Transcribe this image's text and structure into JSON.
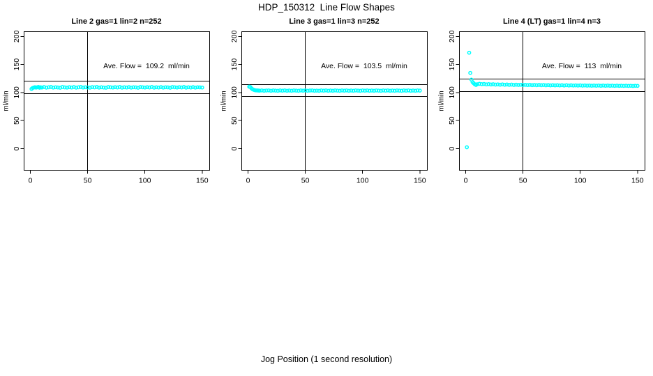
{
  "page": {
    "main_title": "HDP_150312  Line Flow Shapes",
    "x_axis_label": "Jog Position (1 second resolution)"
  },
  "chart_data": [
    {
      "type": "scatter",
      "title": "Line 2 gas=1 lin=2 n=252",
      "ylabel": "ml/min",
      "annotation": "Ave. Flow =  109.2  ml/min",
      "ave_flow": 109.2,
      "n": 252,
      "marker": "open-circle",
      "marker_color": "#00FFFF",
      "line_color": "#000000",
      "x_ticks": [
        0,
        50,
        100,
        150
      ],
      "y_ticks": [
        0,
        50,
        100,
        150,
        200
      ],
      "xlim": [
        -5.5,
        156.5
      ],
      "ylim": [
        -38.5,
        208.5
      ],
      "vline_x": 50,
      "ref_lines": [
        120.1,
        98.3
      ],
      "points": [
        [
          1,
          106.5
        ],
        [
          2,
          108.2
        ],
        [
          3,
          109.0
        ],
        [
          4,
          109.6
        ],
        [
          5,
          108.8
        ],
        [
          6,
          109.3
        ],
        [
          7,
          110.0
        ],
        [
          8,
          108.6
        ],
        [
          9,
          109.4
        ],
        [
          10,
          109.0
        ],
        [
          12,
          109.8
        ],
        [
          14,
          108.7
        ],
        [
          16,
          109.3
        ],
        [
          18,
          110.0
        ],
        [
          20,
          108.8
        ],
        [
          22,
          109.5
        ],
        [
          24,
          109.1
        ],
        [
          26,
          108.6
        ],
        [
          28,
          109.9
        ],
        [
          30,
          109.2
        ],
        [
          32,
          108.8
        ],
        [
          34,
          109.6
        ],
        [
          36,
          109.0
        ],
        [
          38,
          109.8
        ],
        [
          40,
          108.7
        ],
        [
          42,
          109.3
        ],
        [
          44,
          109.9
        ],
        [
          46,
          108.9
        ],
        [
          48,
          109.4
        ],
        [
          50,
          109.1
        ],
        [
          52,
          108.7
        ],
        [
          54,
          109.7
        ],
        [
          56,
          109.2
        ],
        [
          58,
          110.0
        ],
        [
          60,
          108.8
        ],
        [
          62,
          109.5
        ],
        [
          64,
          109.0
        ],
        [
          66,
          108.6
        ],
        [
          68,
          109.8
        ],
        [
          70,
          109.3
        ],
        [
          72,
          108.9
        ],
        [
          74,
          109.6
        ],
        [
          76,
          109.1
        ],
        [
          78,
          109.9
        ],
        [
          80,
          108.7
        ],
        [
          82,
          109.4
        ],
        [
          84,
          109.0
        ],
        [
          86,
          109.7
        ],
        [
          88,
          108.8
        ],
        [
          90,
          109.5
        ],
        [
          92,
          109.2
        ],
        [
          94,
          108.6
        ],
        [
          96,
          109.8
        ],
        [
          98,
          109.3
        ],
        [
          100,
          108.9
        ],
        [
          102,
          109.6
        ],
        [
          104,
          109.1
        ],
        [
          106,
          109.9
        ],
        [
          108,
          108.7
        ],
        [
          110,
          109.4
        ],
        [
          112,
          109.0
        ],
        [
          114,
          109.7
        ],
        [
          116,
          108.8
        ],
        [
          118,
          109.5
        ],
        [
          120,
          109.2
        ],
        [
          122,
          108.6
        ],
        [
          124,
          109.8
        ],
        [
          126,
          109.3
        ],
        [
          128,
          108.9
        ],
        [
          130,
          109.6
        ],
        [
          132,
          109.1
        ],
        [
          134,
          109.9
        ],
        [
          136,
          108.7
        ],
        [
          138,
          109.4
        ],
        [
          140,
          109.0
        ],
        [
          142,
          109.7
        ],
        [
          144,
          108.8
        ],
        [
          146,
          109.5
        ],
        [
          148,
          109.2
        ],
        [
          150,
          109.0
        ]
      ]
    },
    {
      "type": "scatter",
      "title": "Line 3 gas=1 lin=3 n=252",
      "ylabel": "ml/min",
      "annotation": "Ave. Flow =  103.5  ml/min",
      "ave_flow": 103.5,
      "n": 252,
      "marker": "open-circle",
      "marker_color": "#00FFFF",
      "line_color": "#000000",
      "x_ticks": [
        0,
        50,
        100,
        150
      ],
      "y_ticks": [
        0,
        50,
        100,
        150,
        200
      ],
      "xlim": [
        -5.5,
        156.5
      ],
      "ylim": [
        -38.5,
        208.5
      ],
      "vline_x": 50,
      "ref_lines": [
        113.9,
        93.2
      ],
      "points": [
        [
          1,
          110.5
        ],
        [
          2,
          109.8
        ],
        [
          3,
          107.5
        ],
        [
          4,
          105.8
        ],
        [
          5,
          104.8
        ],
        [
          6,
          104.2
        ],
        [
          7,
          103.9
        ],
        [
          8,
          103.7
        ],
        [
          9,
          103.6
        ],
        [
          10,
          103.4
        ],
        [
          12,
          103.8
        ],
        [
          14,
          103.2
        ],
        [
          16,
          103.6
        ],
        [
          18,
          103.9
        ],
        [
          20,
          103.3
        ],
        [
          22,
          103.7
        ],
        [
          24,
          103.5
        ],
        [
          26,
          103.1
        ],
        [
          28,
          103.8
        ],
        [
          30,
          103.4
        ],
        [
          32,
          103.9
        ],
        [
          34,
          103.2
        ],
        [
          36,
          103.6
        ],
        [
          38,
          103.3
        ],
        [
          40,
          103.8
        ],
        [
          42,
          103.5
        ],
        [
          44,
          103.1
        ],
        [
          46,
          103.7
        ],
        [
          48,
          103.4
        ],
        [
          50,
          103.9
        ],
        [
          52,
          103.2
        ],
        [
          54,
          103.6
        ],
        [
          56,
          103.8
        ],
        [
          58,
          103.3
        ],
        [
          60,
          103.5
        ],
        [
          62,
          103.1
        ],
        [
          64,
          103.7
        ],
        [
          66,
          103.4
        ],
        [
          68,
          103.9
        ],
        [
          70,
          103.2
        ],
        [
          72,
          103.6
        ],
        [
          74,
          103.3
        ],
        [
          76,
          103.8
        ],
        [
          78,
          103.5
        ],
        [
          80,
          103.1
        ],
        [
          82,
          103.7
        ],
        [
          84,
          103.4
        ],
        [
          86,
          103.9
        ],
        [
          88,
          103.2
        ],
        [
          90,
          103.6
        ],
        [
          92,
          103.3
        ],
        [
          94,
          103.8
        ],
        [
          96,
          103.5
        ],
        [
          98,
          103.1
        ],
        [
          100,
          103.7
        ],
        [
          102,
          103.4
        ],
        [
          104,
          103.9
        ],
        [
          106,
          103.2
        ],
        [
          108,
          103.6
        ],
        [
          110,
          103.3
        ],
        [
          112,
          103.8
        ],
        [
          114,
          103.5
        ],
        [
          116,
          103.1
        ],
        [
          118,
          103.7
        ],
        [
          120,
          103.4
        ],
        [
          122,
          103.9
        ],
        [
          124,
          103.2
        ],
        [
          126,
          103.6
        ],
        [
          128,
          103.3
        ],
        [
          130,
          103.8
        ],
        [
          132,
          103.5
        ],
        [
          134,
          103.1
        ],
        [
          136,
          103.7
        ],
        [
          138,
          103.4
        ],
        [
          140,
          103.9
        ],
        [
          142,
          103.2
        ],
        [
          144,
          103.6
        ],
        [
          146,
          103.3
        ],
        [
          148,
          103.8
        ],
        [
          150,
          103.5
        ]
      ]
    },
    {
      "type": "scatter",
      "title": "Line 4 (LT) gas=1 lin=4 n=3",
      "ylabel": "ml/min",
      "annotation": "Ave. Flow =  113  ml/min",
      "ave_flow": 113,
      "n": 3,
      "marker": "open-circle",
      "marker_color": "#00FFFF",
      "line_color": "#000000",
      "x_ticks": [
        0,
        50,
        100,
        150
      ],
      "y_ticks": [
        0,
        50,
        100,
        150,
        200
      ],
      "xlim": [
        -5.5,
        156.5
      ],
      "ylim": [
        -38.5,
        208.5
      ],
      "vline_x": 50,
      "ref_lines": [
        124.3,
        101.7
      ],
      "points": [
        [
          1,
          2.5
        ],
        [
          3,
          171
        ],
        [
          4,
          135
        ],
        [
          5,
          123
        ],
        [
          6,
          118.5
        ],
        [
          7,
          116.5
        ],
        [
          8,
          114.5
        ],
        [
          9,
          113.5
        ],
        [
          10,
          114.8
        ],
        [
          12,
          115.5
        ],
        [
          14,
          114.9
        ],
        [
          16,
          115.3
        ],
        [
          18,
          114.6
        ],
        [
          20,
          115.0
        ],
        [
          22,
          114.4
        ],
        [
          24,
          114.8
        ],
        [
          26,
          114.2
        ],
        [
          28,
          114.6
        ],
        [
          30,
          114.0
        ],
        [
          32,
          114.5
        ],
        [
          34,
          113.9
        ],
        [
          36,
          114.3
        ],
        [
          38,
          113.8
        ],
        [
          40,
          114.2
        ],
        [
          42,
          113.6
        ],
        [
          44,
          114.0
        ],
        [
          46,
          113.5
        ],
        [
          48,
          113.9
        ],
        [
          50,
          113.4
        ],
        [
          52,
          113.8
        ],
        [
          54,
          113.3
        ],
        [
          56,
          113.7
        ],
        [
          58,
          113.2
        ],
        [
          60,
          113.6
        ],
        [
          62,
          113.1
        ],
        [
          64,
          113.5
        ],
        [
          66,
          113.0
        ],
        [
          68,
          113.4
        ],
        [
          70,
          112.9
        ],
        [
          72,
          113.3
        ],
        [
          74,
          112.8
        ],
        [
          76,
          113.2
        ],
        [
          78,
          112.8
        ],
        [
          80,
          113.1
        ],
        [
          82,
          112.7
        ],
        [
          84,
          113.0
        ],
        [
          86,
          112.6
        ],
        [
          88,
          113.0
        ],
        [
          90,
          112.5
        ],
        [
          92,
          112.9
        ],
        [
          94,
          112.5
        ],
        [
          96,
          112.8
        ],
        [
          98,
          112.4
        ],
        [
          100,
          112.8
        ],
        [
          102,
          112.3
        ],
        [
          104,
          112.7
        ],
        [
          106,
          112.3
        ],
        [
          108,
          112.6
        ],
        [
          110,
          112.2
        ],
        [
          112,
          112.6
        ],
        [
          114,
          112.2
        ],
        [
          116,
          112.5
        ],
        [
          118,
          112.1
        ],
        [
          120,
          112.5
        ],
        [
          122,
          112.0
        ],
        [
          124,
          112.4
        ],
        [
          126,
          112.0
        ],
        [
          128,
          112.3
        ],
        [
          130,
          111.9
        ],
        [
          132,
          112.3
        ],
        [
          134,
          111.9
        ],
        [
          136,
          112.2
        ],
        [
          138,
          111.8
        ],
        [
          140,
          112.2
        ],
        [
          142,
          111.8
        ],
        [
          144,
          112.1
        ],
        [
          146,
          111.7
        ],
        [
          148,
          112.0
        ],
        [
          150,
          111.9
        ]
      ]
    }
  ]
}
